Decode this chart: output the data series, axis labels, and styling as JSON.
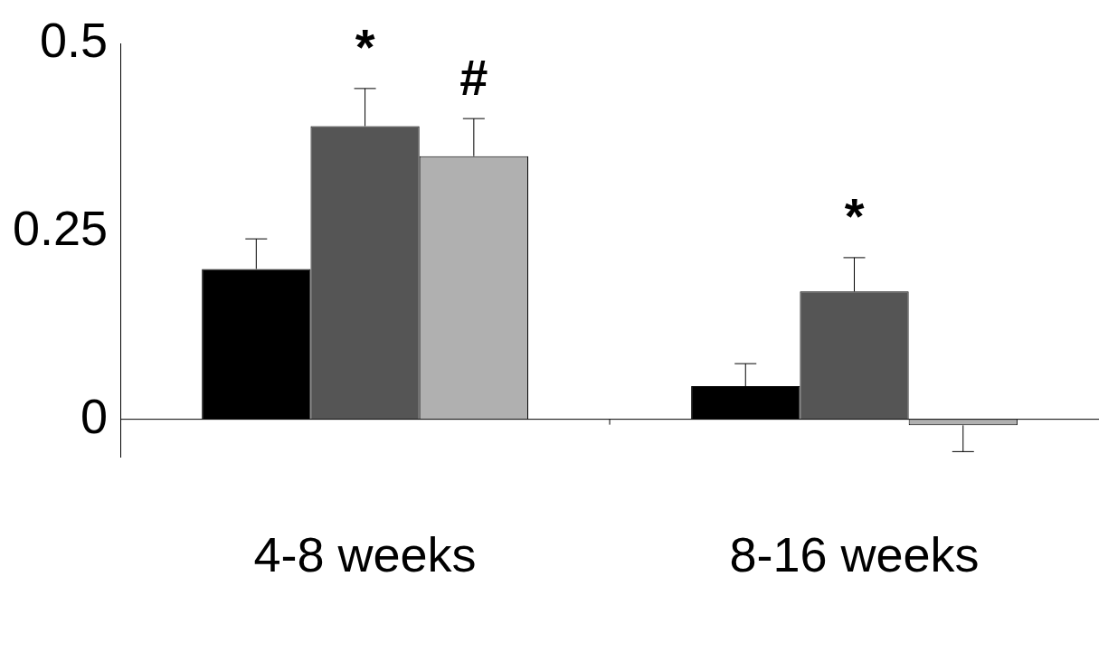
{
  "chart_data": {
    "type": "bar",
    "categories": [
      "4-8 weeks",
      "8-16 weeks"
    ],
    "series": [
      {
        "color": "#000000",
        "values": [
          0.2,
          0.044
        ],
        "errors": [
          0.04,
          0.03
        ]
      },
      {
        "color": "#555555",
        "values": [
          0.39,
          0.17
        ],
        "errors": [
          0.05,
          0.045
        ]
      },
      {
        "color": "#b0b0b0",
        "values": [
          0.35,
          -0.008
        ],
        "errors": [
          0.05,
          0.035
        ]
      }
    ],
    "ylim": [
      -0.05,
      0.5
    ],
    "yticks": [
      0,
      0.25,
      0.5
    ],
    "grid": false,
    "legend": false,
    "annotations": [
      "*",
      "#",
      "*"
    ]
  }
}
